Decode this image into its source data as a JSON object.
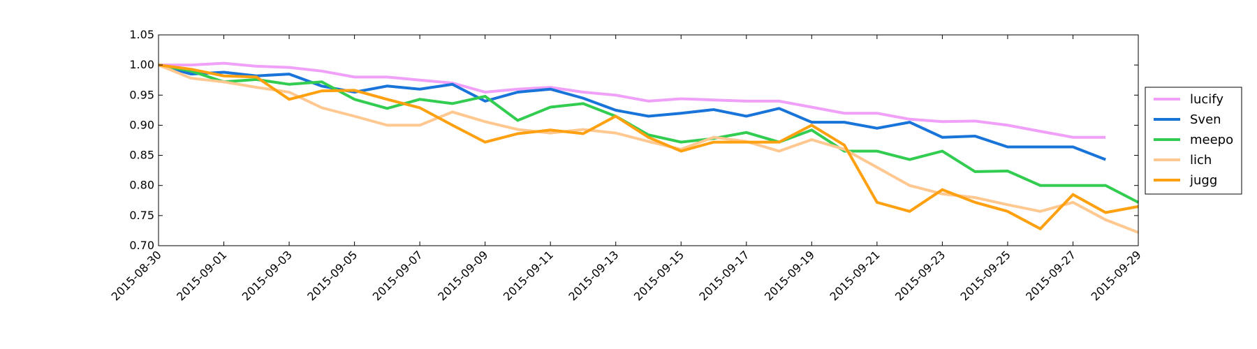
{
  "chart_data": {
    "type": "line",
    "title": "",
    "xlabel": "",
    "ylabel": "",
    "ylim": [
      0.7,
      1.05
    ],
    "yticks": [
      "0.70",
      "0.75",
      "0.80",
      "0.85",
      "0.90",
      "0.95",
      "1.00",
      "1.05"
    ],
    "xlim": [
      "2015-08-30",
      "2015-09-29"
    ],
    "xticks": [
      "2015-08-30",
      "2015-09-01",
      "2015-09-03",
      "2015-09-05",
      "2015-09-07",
      "2015-09-09",
      "2015-09-11",
      "2015-09-13",
      "2015-09-15",
      "2015-09-17",
      "2015-09-19",
      "2015-09-21",
      "2015-09-23",
      "2015-09-25",
      "2015-09-27",
      "2015-09-29"
    ],
    "grid": false,
    "legend_position": "right",
    "x": [
      "2015-08-30",
      "2015-08-31",
      "2015-09-01",
      "2015-09-02",
      "2015-09-03",
      "2015-09-04",
      "2015-09-05",
      "2015-09-06",
      "2015-09-07",
      "2015-09-08",
      "2015-09-09",
      "2015-09-10",
      "2015-09-11",
      "2015-09-12",
      "2015-09-13",
      "2015-09-14",
      "2015-09-15",
      "2015-09-16",
      "2015-09-17",
      "2015-09-18",
      "2015-09-19",
      "2015-09-20",
      "2015-09-21",
      "2015-09-22",
      "2015-09-23",
      "2015-09-24",
      "2015-09-25",
      "2015-09-26",
      "2015-09-27",
      "2015-09-28",
      "2015-09-29"
    ],
    "series": [
      {
        "name": "lucify",
        "color": "#f0a0f8",
        "values": [
          1.0,
          1.0,
          1.003,
          0.998,
          0.996,
          0.99,
          0.98,
          0.98,
          0.975,
          0.97,
          0.955,
          0.96,
          0.963,
          0.955,
          0.95,
          0.94,
          0.944,
          0.942,
          0.94,
          0.94,
          0.93,
          0.92,
          0.92,
          0.91,
          0.906,
          0.907,
          0.9,
          0.89,
          0.88,
          0.88,
          null
        ]
      },
      {
        "name": "Sven",
        "color": "#1874d8",
        "values": [
          1.0,
          0.985,
          0.988,
          0.982,
          0.985,
          0.965,
          0.955,
          0.965,
          0.96,
          0.968,
          0.94,
          0.955,
          0.96,
          0.945,
          0.925,
          0.915,
          0.92,
          0.926,
          0.915,
          0.928,
          0.905,
          0.905,
          0.895,
          0.905,
          0.88,
          0.882,
          0.864,
          0.864,
          0.864,
          0.843,
          null
        ]
      },
      {
        "name": "meepo",
        "color": "#32cd50",
        "values": [
          1.0,
          0.99,
          0.972,
          0.976,
          0.968,
          0.972,
          0.943,
          0.928,
          0.943,
          0.936,
          0.948,
          0.908,
          0.93,
          0.936,
          0.915,
          0.884,
          0.872,
          0.878,
          0.888,
          0.872,
          0.892,
          0.857,
          0.857,
          0.843,
          0.857,
          0.823,
          0.824,
          0.8,
          0.8,
          0.8,
          0.772
        ]
      },
      {
        "name": "lich",
        "color": "#ffc890",
        "values": [
          1.0,
          0.978,
          0.972,
          0.963,
          0.955,
          0.929,
          0.915,
          0.9,
          0.9,
          0.922,
          0.906,
          0.893,
          0.887,
          0.893,
          0.887,
          0.873,
          0.86,
          0.88,
          0.873,
          0.857,
          0.876,
          0.86,
          0.83,
          0.8,
          0.786,
          0.78,
          0.768,
          0.757,
          0.772,
          0.743,
          0.722
        ]
      },
      {
        "name": "jugg",
        "color": "#ffa010",
        "values": [
          1.0,
          0.993,
          0.982,
          0.98,
          0.943,
          0.957,
          0.958,
          0.943,
          0.929,
          0.9,
          0.872,
          0.886,
          0.892,
          0.886,
          0.915,
          0.88,
          0.857,
          0.872,
          0.872,
          0.872,
          0.9,
          0.867,
          0.772,
          0.757,
          0.793,
          0.772,
          0.757,
          0.728,
          0.785,
          0.755,
          0.765
        ]
      }
    ]
  }
}
